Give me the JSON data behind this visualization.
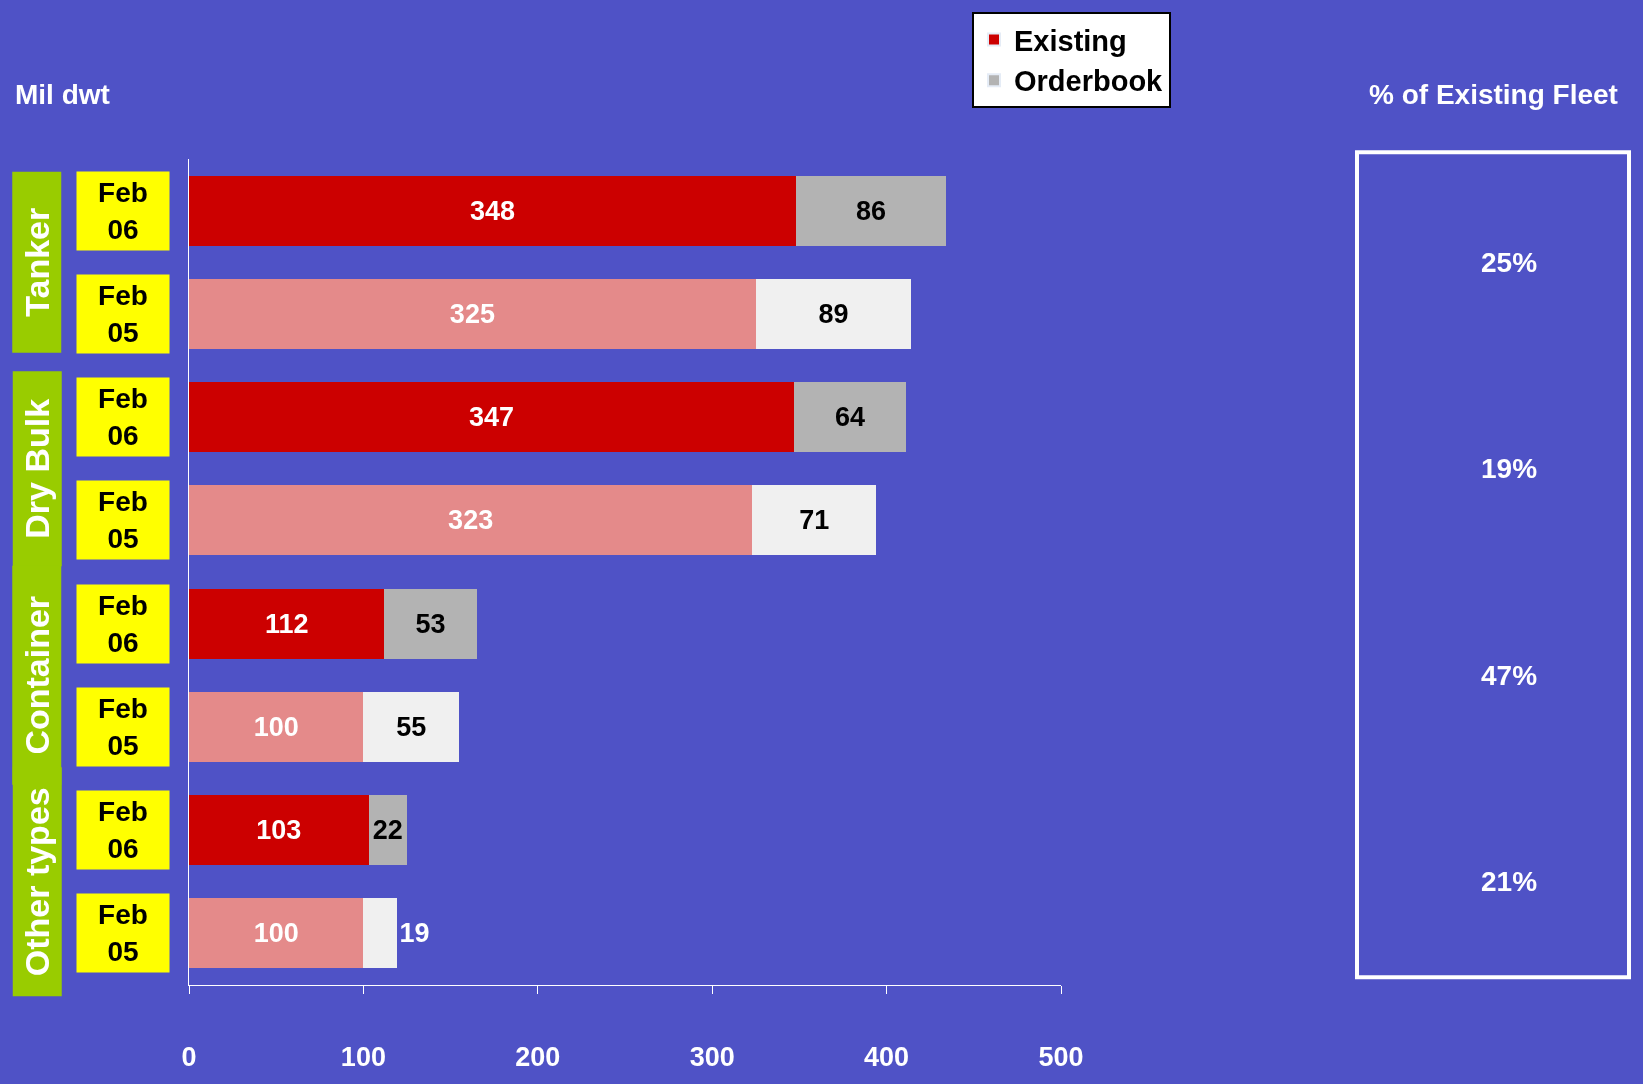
{
  "chart_data": {
    "type": "bar",
    "orientation": "horizontal",
    "stacked": true,
    "categories": [
      "Feb 06",
      "Feb 05",
      "Feb 06",
      "Feb 05",
      "Feb 06",
      "Feb 05",
      "Feb 06",
      "Feb 05"
    ],
    "series": [
      {
        "name": "Existing",
        "color": "#cc0000",
        "colors": [
          "#cc0000",
          "#e48a8a",
          "#cc0000",
          "#e48a8a",
          "#cc0000",
          "#e48a8a",
          "#cc0000",
          "#e48a8a"
        ],
        "values": [
          348,
          325,
          347,
          323,
          112,
          100,
          103,
          100
        ]
      },
      {
        "name": "Orderbook",
        "color": "#b3b3b3",
        "colors": [
          "#b3b3b3",
          "#f0f0f0",
          "#b3b3b3",
          "#f0f0f0",
          "#b3b3b3",
          "#f0f0f0",
          "#b3b3b3",
          "#f0f0f0"
        ],
        "values": [
          86,
          89,
          64,
          71,
          53,
          55,
          22,
          19
        ]
      }
    ],
    "data_labels": true,
    "xlim": [
      0,
      500
    ],
    "xticks": [
      0,
      100,
      200,
      300,
      400,
      500
    ],
    "grid": false,
    "legend": "top",
    "annotations": [
      "Mil dwt",
      "% of Existing Fleet",
      "Tanker",
      "Dry Bulk",
      "Container",
      "Other types",
      "25%",
      "19%",
      "47%",
      "21%"
    ]
  }
}
